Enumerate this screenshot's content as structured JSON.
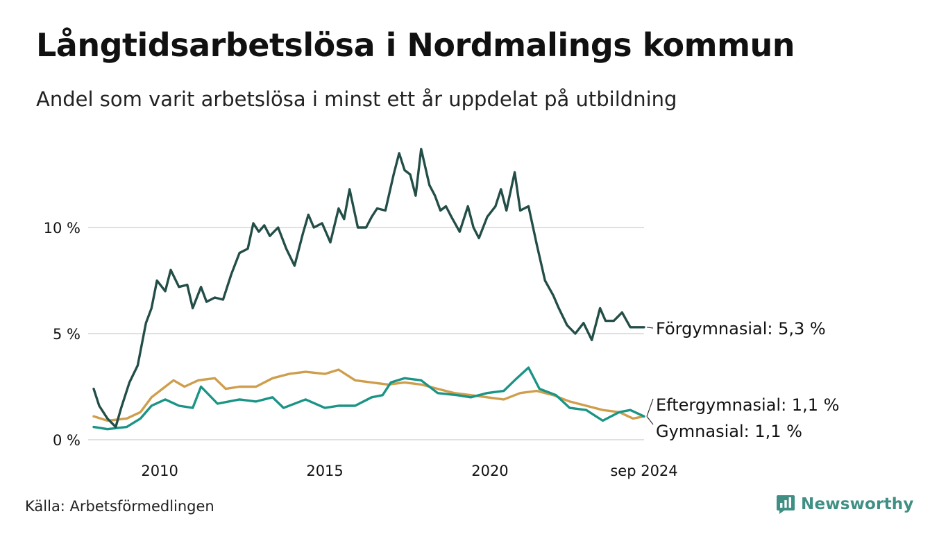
{
  "title": "Långtidsarbetslösa i Nordmalings kommun",
  "subtitle": "Andel som varit arbetslösa i minst ett år uppdelat på utbildning",
  "source": "Källa: Arbetsförmedlingen",
  "brand": "Newsworthy",
  "colors": {
    "forgymnasial": "#234e48",
    "eftergymnasial": "#1a9485",
    "gymnasial": "#cf9e4c",
    "grid": "#e0e0e0",
    "brand": "#3f8f84"
  },
  "chart_data": {
    "type": "line",
    "title": "Långtidsarbetslösa i Nordmalings kommun",
    "subtitle": "Andel som varit arbetslösa i minst ett år uppdelat på utbildning",
    "xlabel": "",
    "ylabel": "",
    "x_range": [
      "2008-01",
      "2024-09"
    ],
    "ylim": [
      0,
      14
    ],
    "y_ticks": [
      {
        "value": 0,
        "label": "0 %"
      },
      {
        "value": 5,
        "label": "5 %"
      },
      {
        "value": 10,
        "label": "10 %"
      }
    ],
    "x_ticks": [
      {
        "date": "2010-01",
        "label": "2010"
      },
      {
        "date": "2015-01",
        "label": "2015"
      },
      {
        "date": "2020-01",
        "label": "2020"
      },
      {
        "date": "2024-09",
        "label": "sep 2024"
      }
    ],
    "grid": "horizontal",
    "legend": "direct labels at right end of lines",
    "series": [
      {
        "key": "forgymnasial",
        "label": "Förgymnasial: 5,3 %",
        "points": [
          [
            "2008-01",
            2.4
          ],
          [
            "2008-03",
            1.6
          ],
          [
            "2008-06",
            1.0
          ],
          [
            "2008-09",
            0.6
          ],
          [
            "2008-11",
            1.5
          ],
          [
            "2009-02",
            2.7
          ],
          [
            "2009-05",
            3.5
          ],
          [
            "2009-08",
            5.5
          ],
          [
            "2009-10",
            6.2
          ],
          [
            "2009-12",
            7.5
          ],
          [
            "2010-03",
            7.0
          ],
          [
            "2010-05",
            8.0
          ],
          [
            "2010-08",
            7.2
          ],
          [
            "2010-11",
            7.3
          ],
          [
            "2011-01",
            6.2
          ],
          [
            "2011-04",
            7.2
          ],
          [
            "2011-06",
            6.5
          ],
          [
            "2011-09",
            6.7
          ],
          [
            "2011-12",
            6.6
          ],
          [
            "2012-03",
            7.8
          ],
          [
            "2012-06",
            8.8
          ],
          [
            "2012-09",
            9.0
          ],
          [
            "2012-11",
            10.2
          ],
          [
            "2013-01",
            9.8
          ],
          [
            "2013-03",
            10.1
          ],
          [
            "2013-05",
            9.6
          ],
          [
            "2013-08",
            10.0
          ],
          [
            "2013-11",
            9.0
          ],
          [
            "2014-02",
            8.2
          ],
          [
            "2014-05",
            9.7
          ],
          [
            "2014-07",
            10.6
          ],
          [
            "2014-09",
            10.0
          ],
          [
            "2014-12",
            10.2
          ],
          [
            "2015-03",
            9.3
          ],
          [
            "2015-06",
            10.9
          ],
          [
            "2015-08",
            10.4
          ],
          [
            "2015-10",
            11.8
          ],
          [
            "2016-01",
            10.0
          ],
          [
            "2016-04",
            10.0
          ],
          [
            "2016-06",
            10.5
          ],
          [
            "2016-08",
            10.9
          ],
          [
            "2016-11",
            10.8
          ],
          [
            "2017-02",
            12.5
          ],
          [
            "2017-04",
            13.5
          ],
          [
            "2017-06",
            12.7
          ],
          [
            "2017-08",
            12.5
          ],
          [
            "2017-10",
            11.5
          ],
          [
            "2017-12",
            13.7
          ],
          [
            "2018-03",
            12.0
          ],
          [
            "2018-05",
            11.5
          ],
          [
            "2018-07",
            10.8
          ],
          [
            "2018-09",
            11.0
          ],
          [
            "2018-11",
            10.5
          ],
          [
            "2019-02",
            9.8
          ],
          [
            "2019-05",
            11.0
          ],
          [
            "2019-07",
            10.0
          ],
          [
            "2019-09",
            9.5
          ],
          [
            "2019-12",
            10.5
          ],
          [
            "2020-03",
            11.0
          ],
          [
            "2020-05",
            11.8
          ],
          [
            "2020-07",
            10.8
          ],
          [
            "2020-10",
            12.6
          ],
          [
            "2020-12",
            10.8
          ],
          [
            "2021-03",
            11.0
          ],
          [
            "2021-06",
            9.2
          ],
          [
            "2021-09",
            7.5
          ],
          [
            "2021-12",
            6.8
          ],
          [
            "2022-02",
            6.2
          ],
          [
            "2022-05",
            5.4
          ],
          [
            "2022-08",
            5.0
          ],
          [
            "2022-11",
            5.5
          ],
          [
            "2023-02",
            4.7
          ],
          [
            "2023-05",
            6.2
          ],
          [
            "2023-07",
            5.6
          ],
          [
            "2023-10",
            5.6
          ],
          [
            "2024-01",
            6.0
          ],
          [
            "2024-04",
            5.3
          ],
          [
            "2024-09",
            5.3
          ]
        ]
      },
      {
        "key": "eftergymnasial",
        "label": "Eftergymnasial: 1,1 %",
        "points": [
          [
            "2008-01",
            0.6
          ],
          [
            "2008-06",
            0.5
          ],
          [
            "2009-01",
            0.6
          ],
          [
            "2009-06",
            1.0
          ],
          [
            "2009-10",
            1.6
          ],
          [
            "2010-03",
            1.9
          ],
          [
            "2010-08",
            1.6
          ],
          [
            "2011-01",
            1.5
          ],
          [
            "2011-04",
            2.5
          ],
          [
            "2011-10",
            1.7
          ],
          [
            "2012-06",
            1.9
          ],
          [
            "2012-12",
            1.8
          ],
          [
            "2013-06",
            2.0
          ],
          [
            "2013-10",
            1.5
          ],
          [
            "2014-06",
            1.9
          ],
          [
            "2015-01",
            1.5
          ],
          [
            "2015-06",
            1.6
          ],
          [
            "2015-12",
            1.6
          ],
          [
            "2016-06",
            2.0
          ],
          [
            "2016-10",
            2.1
          ],
          [
            "2017-01",
            2.7
          ],
          [
            "2017-06",
            2.9
          ],
          [
            "2017-12",
            2.8
          ],
          [
            "2018-06",
            2.2
          ],
          [
            "2019-01",
            2.1
          ],
          [
            "2019-06",
            2.0
          ],
          [
            "2019-12",
            2.2
          ],
          [
            "2020-06",
            2.3
          ],
          [
            "2020-10",
            2.8
          ],
          [
            "2021-03",
            3.4
          ],
          [
            "2021-07",
            2.4
          ],
          [
            "2022-01",
            2.1
          ],
          [
            "2022-06",
            1.5
          ],
          [
            "2022-12",
            1.4
          ],
          [
            "2023-06",
            0.9
          ],
          [
            "2023-12",
            1.3
          ],
          [
            "2024-04",
            1.4
          ],
          [
            "2024-09",
            1.1
          ]
        ]
      },
      {
        "key": "gymnasial",
        "label": "Gymnasial: 1,1 %",
        "points": [
          [
            "2008-01",
            1.1
          ],
          [
            "2008-06",
            0.9
          ],
          [
            "2009-01",
            1.0
          ],
          [
            "2009-06",
            1.3
          ],
          [
            "2009-10",
            2.0
          ],
          [
            "2010-03",
            2.5
          ],
          [
            "2010-06",
            2.8
          ],
          [
            "2010-10",
            2.5
          ],
          [
            "2011-03",
            2.8
          ],
          [
            "2011-09",
            2.9
          ],
          [
            "2012-01",
            2.4
          ],
          [
            "2012-06",
            2.5
          ],
          [
            "2012-12",
            2.5
          ],
          [
            "2013-06",
            2.9
          ],
          [
            "2013-12",
            3.1
          ],
          [
            "2014-06",
            3.2
          ],
          [
            "2015-01",
            3.1
          ],
          [
            "2015-06",
            3.3
          ],
          [
            "2015-12",
            2.8
          ],
          [
            "2016-06",
            2.7
          ],
          [
            "2016-12",
            2.6
          ],
          [
            "2017-06",
            2.7
          ],
          [
            "2017-12",
            2.6
          ],
          [
            "2018-06",
            2.4
          ],
          [
            "2018-12",
            2.2
          ],
          [
            "2019-06",
            2.1
          ],
          [
            "2019-12",
            2.0
          ],
          [
            "2020-06",
            1.9
          ],
          [
            "2020-12",
            2.2
          ],
          [
            "2021-06",
            2.3
          ],
          [
            "2021-12",
            2.1
          ],
          [
            "2022-06",
            1.8
          ],
          [
            "2022-12",
            1.6
          ],
          [
            "2023-06",
            1.4
          ],
          [
            "2023-12",
            1.3
          ],
          [
            "2024-05",
            1.0
          ],
          [
            "2024-09",
            1.1
          ]
        ]
      }
    ]
  }
}
